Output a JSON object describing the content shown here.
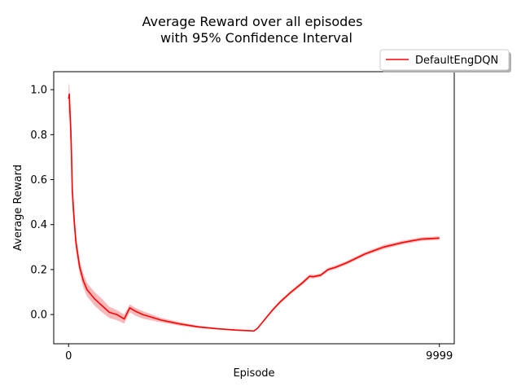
{
  "chart_data": {
    "type": "line",
    "title_lines": [
      "Average Reward over all episodes",
      "with 95% Confidence Interval"
    ],
    "xlabel": "Episode",
    "ylabel": "Average Reward",
    "xlim": [
      -400,
      10400
    ],
    "ylim": [
      -0.13,
      1.08
    ],
    "x_ticks": [
      0,
      9999
    ],
    "x_tick_labels": [
      "0",
      "9999"
    ],
    "y_ticks": [
      0.0,
      0.2,
      0.4,
      0.6,
      0.8,
      1.0
    ],
    "y_tick_labels": [
      "0.0",
      "0.2",
      "0.4",
      "0.6",
      "0.8",
      "1.0"
    ],
    "grid": false,
    "legend": {
      "placement": "top-right-outside",
      "entries": [
        "DefaultEngDQN"
      ]
    },
    "series": [
      {
        "name": "DefaultEngDQN",
        "color": "#ff0000",
        "band_color": "#f08080",
        "x": [
          0,
          20,
          40,
          60,
          80,
          100,
          150,
          200,
          300,
          400,
          500,
          700,
          900,
          1100,
          1300,
          1500,
          1650,
          1800,
          2000,
          2500,
          3000,
          3500,
          4000,
          4500,
          5000,
          5100,
          5300,
          5500,
          5700,
          6000,
          6300,
          6500,
          6600,
          6800,
          7000,
          7200,
          7500,
          8000,
          8500,
          9000,
          9500,
          9999
        ],
        "y": [
          0.96,
          0.98,
          0.9,
          0.82,
          0.7,
          0.55,
          0.42,
          0.32,
          0.21,
          0.15,
          0.11,
          0.07,
          0.04,
          0.01,
          0.0,
          -0.02,
          0.03,
          0.015,
          0.0,
          -0.025,
          -0.042,
          -0.055,
          -0.063,
          -0.069,
          -0.073,
          -0.06,
          -0.02,
          0.02,
          0.055,
          0.1,
          0.14,
          0.17,
          0.168,
          0.175,
          0.2,
          0.21,
          0.23,
          0.27,
          0.3,
          0.32,
          0.335,
          0.34
        ],
        "lower": [
          0.86,
          0.9,
          0.8,
          0.72,
          0.6,
          0.48,
          0.37,
          0.28,
          0.18,
          0.12,
          0.08,
          0.04,
          0.01,
          -0.015,
          -0.025,
          -0.04,
          0.01,
          -0.005,
          -0.018,
          -0.035,
          -0.05,
          -0.06,
          -0.067,
          -0.072,
          -0.075,
          -0.063,
          -0.025,
          0.014,
          0.048,
          0.093,
          0.132,
          0.162,
          0.16,
          0.167,
          0.192,
          0.202,
          0.222,
          0.262,
          0.291,
          0.312,
          0.327,
          0.332
        ],
        "upper": [
          1.03,
          1.02,
          0.96,
          0.88,
          0.78,
          0.62,
          0.47,
          0.36,
          0.24,
          0.18,
          0.14,
          0.1,
          0.07,
          0.035,
          0.02,
          0.0,
          0.045,
          0.03,
          0.015,
          -0.015,
          -0.034,
          -0.05,
          -0.059,
          -0.066,
          -0.071,
          -0.057,
          -0.015,
          0.026,
          0.062,
          0.107,
          0.148,
          0.178,
          0.176,
          0.183,
          0.208,
          0.218,
          0.238,
          0.278,
          0.309,
          0.328,
          0.343,
          0.348
        ]
      }
    ]
  }
}
